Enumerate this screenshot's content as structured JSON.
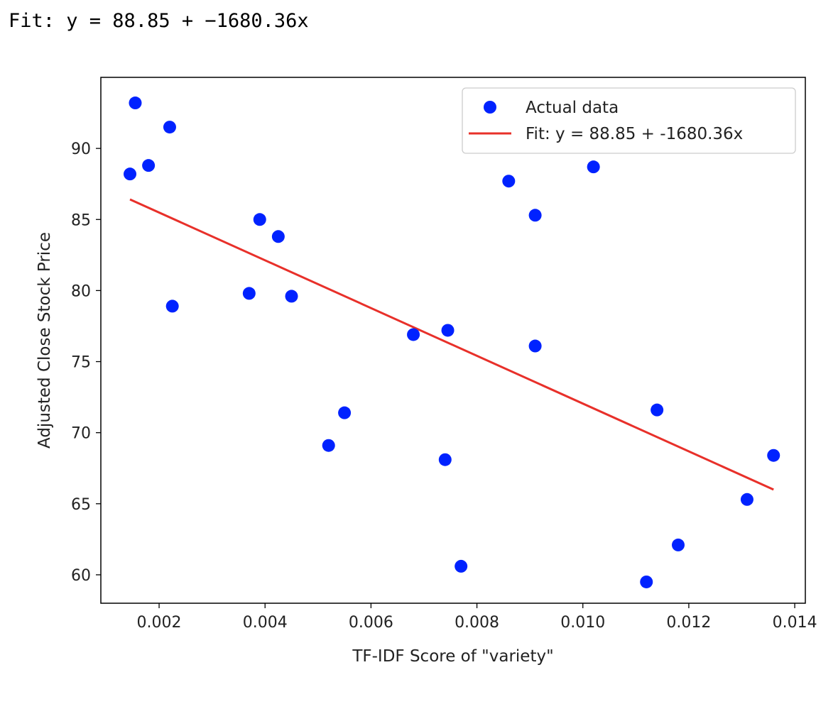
{
  "output": {
    "fit_text": "Fit: y = 88.85 + −1680.36x"
  },
  "colors": {
    "points": "#0022ff",
    "fit_line": "#e8302a",
    "axes": "#000000"
  },
  "chart_data": {
    "type": "scatter",
    "title": "",
    "xlabel": "TF-IDF Score of \"variety\"",
    "ylabel": "Adjusted Close Stock Price",
    "xlim": [
      0.0009,
      0.0142
    ],
    "ylim": [
      58,
      95
    ],
    "xticks": [
      0.002,
      0.004,
      0.006,
      0.008,
      0.01,
      0.012,
      0.014
    ],
    "xtick_labels": [
      "0.002",
      "0.004",
      "0.006",
      "0.008",
      "0.010",
      "0.012",
      "0.014"
    ],
    "yticks": [
      60,
      65,
      70,
      75,
      80,
      85,
      90
    ],
    "ytick_labels": [
      "60",
      "65",
      "70",
      "75",
      "80",
      "85",
      "90"
    ],
    "grid": false,
    "legend_position": "top-right",
    "series": [
      {
        "name": "Actual data",
        "kind": "scatter",
        "points": [
          [
            0.00145,
            88.2
          ],
          [
            0.00155,
            93.2
          ],
          [
            0.0018,
            88.8
          ],
          [
            0.0022,
            91.5
          ],
          [
            0.00225,
            78.9
          ],
          [
            0.0037,
            79.8
          ],
          [
            0.0039,
            85.0
          ],
          [
            0.00425,
            83.8
          ],
          [
            0.0045,
            79.6
          ],
          [
            0.0052,
            69.1
          ],
          [
            0.0055,
            71.4
          ],
          [
            0.0068,
            76.9
          ],
          [
            0.0074,
            68.1
          ],
          [
            0.00745,
            77.2
          ],
          [
            0.0077,
            60.6
          ],
          [
            0.0086,
            87.7
          ],
          [
            0.0091,
            85.3
          ],
          [
            0.0091,
            76.1
          ],
          [
            0.0102,
            88.7
          ],
          [
            0.0112,
            59.5
          ],
          [
            0.0114,
            71.6
          ],
          [
            0.0118,
            62.1
          ],
          [
            0.0131,
            65.3
          ],
          [
            0.0136,
            68.4
          ]
        ]
      },
      {
        "name": "Fit: y = 88.85 + -1680.36x",
        "kind": "line",
        "intercept": 88.85,
        "slope": -1680.36,
        "x_range": [
          0.00145,
          0.0136
        ]
      }
    ]
  }
}
